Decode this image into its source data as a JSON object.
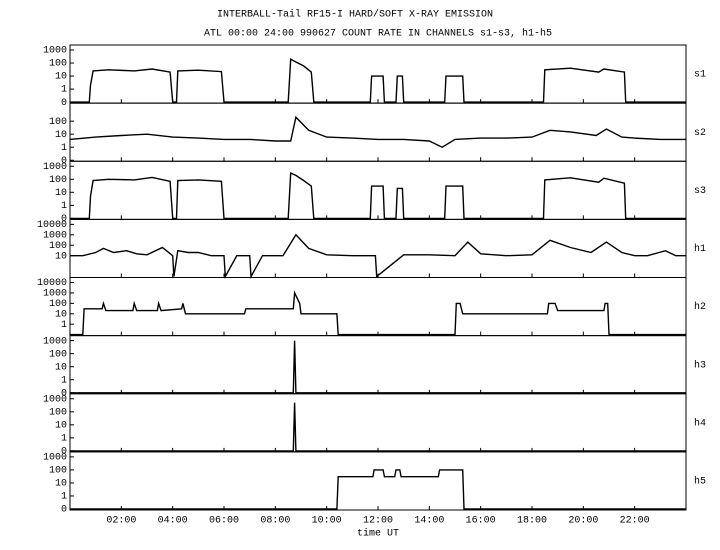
{
  "chart_data": {
    "type": "line",
    "title": "INTERBALL-Tail RF15-I HARD/SOFT X-RAY EMISSION",
    "subtitle": "ATL 00:00 24:00 990627  COUNT RATE IN CHANNELS s1-s3, h1-h5",
    "xlabel": "time UT",
    "xlim": [
      0,
      24
    ],
    "xticks": [
      {
        "value": 2,
        "label": "02:00"
      },
      {
        "value": 4,
        "label": "04:00"
      },
      {
        "value": 6,
        "label": "06:00"
      },
      {
        "value": 8,
        "label": "08:00"
      },
      {
        "value": 10,
        "label": "10:00"
      },
      {
        "value": 12,
        "label": "12:00"
      },
      {
        "value": 14,
        "label": "14:00"
      },
      {
        "value": 16,
        "label": "16:00"
      },
      {
        "value": 18,
        "label": "18:00"
      },
      {
        "value": 20,
        "label": "20:00"
      },
      {
        "value": 22,
        "label": "22:00"
      }
    ],
    "yscale": "log",
    "color": "#000000",
    "panels": [
      {
        "name": "s1",
        "ylim": [
          0,
          1000
        ],
        "yticks": [
          0,
          1,
          10,
          100,
          1000
        ],
        "x": [
          0,
          0.75,
          0.8,
          0.9,
          1.5,
          2.5,
          3.2,
          3.9,
          4.0,
          4.15,
          4.2,
          5.0,
          5.9,
          6.0,
          8.5,
          8.6,
          8.8,
          9.1,
          9.4,
          9.5,
          11.7,
          11.75,
          12.2,
          12.25,
          12.7,
          12.75,
          12.95,
          13.0,
          14.6,
          14.65,
          15.3,
          15.35,
          18.45,
          18.5,
          19.5,
          20.6,
          20.8,
          21.6,
          21.65,
          24
        ],
        "values": [
          0,
          0,
          2,
          25,
          30,
          25,
          35,
          20,
          0,
          0,
          25,
          28,
          22,
          0,
          0,
          200,
          120,
          60,
          20,
          0,
          0,
          10,
          10,
          0,
          0,
          10,
          10,
          0,
          0,
          10,
          10,
          0,
          0,
          30,
          40,
          20,
          35,
          20,
          0,
          0
        ]
      },
      {
        "name": "s2",
        "ylim": [
          0,
          1000
        ],
        "yticks": [
          0,
          1,
          10,
          100
        ],
        "x": [
          0,
          1,
          2,
          3,
          4,
          5,
          6,
          7,
          8,
          8.6,
          8.8,
          9.3,
          10,
          11,
          12,
          13,
          14,
          14.5,
          15,
          16,
          17,
          18,
          18.7,
          19.5,
          20.5,
          20.9,
          21.5,
          22,
          23,
          24
        ],
        "values": [
          4,
          6,
          8,
          10,
          6,
          5,
          4,
          4,
          3,
          3,
          200,
          20,
          6,
          5,
          4,
          4,
          3,
          1,
          4,
          5,
          5,
          6,
          20,
          15,
          8,
          25,
          6,
          5,
          4,
          4
        ]
      },
      {
        "name": "s3",
        "ylim": [
          0,
          1000
        ],
        "yticks": [
          0,
          1,
          10,
          100,
          1000
        ],
        "x": [
          0,
          0.75,
          0.8,
          0.9,
          1.5,
          2.5,
          3.2,
          3.9,
          4.0,
          4.15,
          4.2,
          5.0,
          5.9,
          6.0,
          8.5,
          8.6,
          8.8,
          9.1,
          9.4,
          9.5,
          11.7,
          11.75,
          12.2,
          12.25,
          12.7,
          12.75,
          12.95,
          13.0,
          14.6,
          14.65,
          15.3,
          15.35,
          18.45,
          18.5,
          19.5,
          20.6,
          20.8,
          21.6,
          21.65,
          24
        ],
        "values": [
          0,
          0,
          5,
          80,
          100,
          90,
          140,
          70,
          0,
          0,
          80,
          90,
          70,
          0,
          0,
          300,
          200,
          80,
          30,
          0,
          0,
          30,
          30,
          0,
          0,
          20,
          20,
          0,
          0,
          30,
          30,
          0,
          0,
          90,
          130,
          60,
          120,
          50,
          0,
          0
        ]
      },
      {
        "name": "h1",
        "ylim": [
          0,
          10000
        ],
        "yticks": [
          10,
          100,
          1000,
          10000
        ],
        "x": [
          0,
          0.5,
          1,
          1.3,
          1.7,
          2.2,
          2.6,
          3.0,
          3.6,
          4.0,
          4.05,
          4.2,
          4.6,
          5.0,
          5.5,
          6.0,
          6.05,
          6.5,
          7.0,
          7.05,
          7.5,
          8.3,
          8.8,
          9.3,
          10,
          11,
          11.9,
          11.95,
          13,
          14,
          15,
          15.5,
          16,
          17,
          18,
          18.7,
          19.5,
          20.3,
          20.9,
          21.5,
          22,
          22.5,
          23.2,
          23.6,
          24
        ],
        "values": [
          10,
          10,
          20,
          50,
          20,
          30,
          15,
          12,
          60,
          10,
          0,
          30,
          20,
          20,
          10,
          10,
          0,
          10,
          10,
          0,
          10,
          10,
          1000,
          50,
          12,
          10,
          10,
          0,
          12,
          12,
          10,
          200,
          15,
          10,
          12,
          300,
          60,
          20,
          200,
          20,
          10,
          10,
          30,
          10,
          10
        ]
      },
      {
        "name": "h2",
        "ylim": [
          0,
          10000
        ],
        "yticks": [
          1,
          10,
          100,
          1000,
          10000
        ],
        "x": [
          0,
          0.5,
          0.55,
          1.25,
          1.3,
          1.4,
          2.45,
          2.5,
          2.6,
          3.4,
          3.45,
          3.55,
          4.35,
          4.4,
          4.5,
          6.8,
          6.85,
          8.7,
          8.75,
          8.95,
          9.0,
          10.4,
          10.45,
          15.0,
          15.05,
          15.2,
          15.3,
          18.6,
          18.65,
          18.9,
          19.0,
          20.8,
          20.85,
          20.95,
          21.0,
          24
        ],
        "values": [
          0,
          0,
          30,
          30,
          100,
          20,
          20,
          100,
          20,
          20,
          100,
          20,
          30,
          100,
          10,
          10,
          30,
          30,
          1000,
          100,
          10,
          10,
          0,
          0,
          100,
          100,
          10,
          10,
          100,
          100,
          20,
          20,
          100,
          100,
          0,
          0
        ]
      },
      {
        "name": "h3",
        "ylim": [
          0,
          1000
        ],
        "yticks": [
          0,
          1,
          10,
          100,
          1000
        ],
        "x": [
          0,
          8.7,
          8.75,
          8.8,
          24
        ],
        "values": [
          0,
          0,
          1000,
          0,
          0
        ]
      },
      {
        "name": "h4",
        "ylim": [
          0,
          1000
        ],
        "yticks": [
          0,
          1,
          10,
          100,
          1000
        ],
        "x": [
          0,
          8.7,
          8.75,
          8.8,
          24
        ],
        "values": [
          0,
          0,
          500,
          0,
          0
        ]
      },
      {
        "name": "h5",
        "ylim": [
          0,
          1000
        ],
        "yticks": [
          0,
          1,
          10,
          100,
          1000
        ],
        "x": [
          0,
          10.4,
          10.45,
          11.8,
          11.85,
          12.2,
          12.25,
          12.65,
          12.7,
          12.85,
          12.9,
          14.35,
          14.4,
          15.3,
          15.35,
          24
        ],
        "values": [
          0,
          0,
          30,
          30,
          100,
          100,
          30,
          30,
          100,
          100,
          30,
          30,
          100,
          100,
          0,
          0
        ]
      }
    ]
  }
}
